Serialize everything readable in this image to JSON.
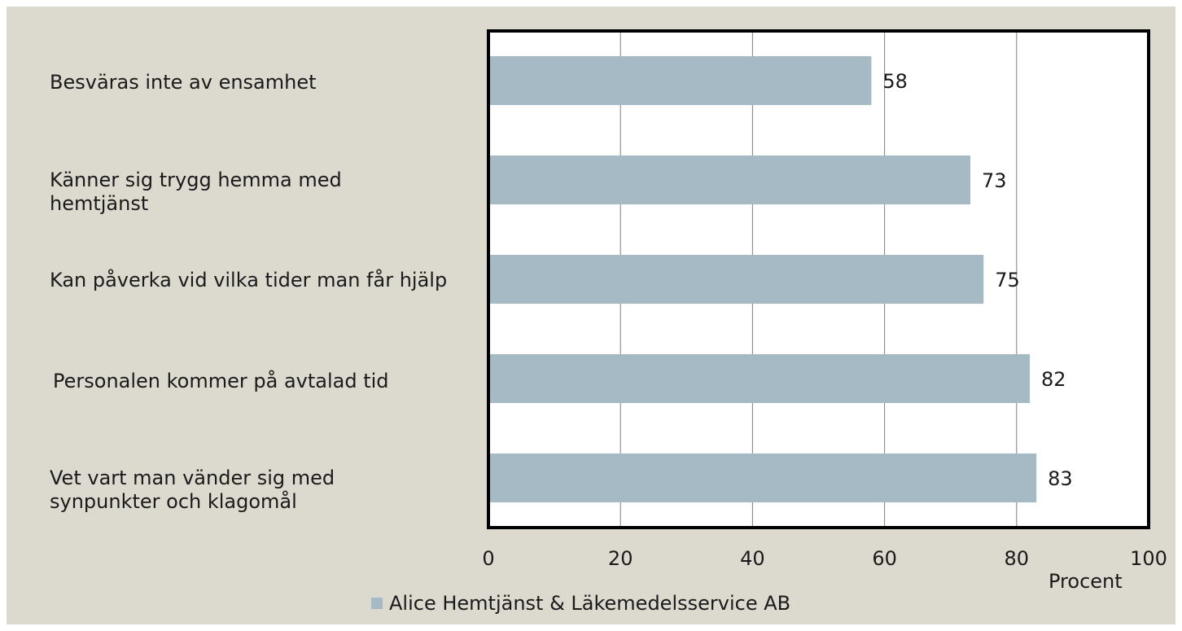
{
  "chart_data": {
    "type": "bar",
    "orientation": "horizontal",
    "categories": [
      "Besväras inte av ensamhet",
      "Känner sig trygg hemma med hemtjänst",
      "Kan påverka vid vilka tider man får hjälp",
      "Personalen kommer på avtalad tid",
      "Vet vart man vänder sig med synpunkter och klagomål"
    ],
    "series": [
      {
        "name": "Alice Hemtjänst & Läkemedelsservice AB",
        "values": [
          58,
          73,
          75,
          82,
          83
        ],
        "color": "#a5bac5"
      }
    ],
    "data_labels": [
      "58",
      "73",
      "75",
      "82",
      "83"
    ],
    "xlabel": "Procent",
    "ylabel": "",
    "xlim": [
      0,
      100
    ],
    "x_ticks": [
      0,
      20,
      40,
      60,
      80,
      100
    ],
    "x_tick_labels": [
      "0",
      "20",
      "40",
      "60",
      "80",
      "100"
    ],
    "grid": true,
    "legend_position": "bottom",
    "colors": {
      "background": "#dcd9cf",
      "plot_area": "#ffffff",
      "bar": "#a5bac5",
      "axis": "#000000",
      "grid": "#7f7f7f",
      "text": "#1a1a1a"
    }
  }
}
